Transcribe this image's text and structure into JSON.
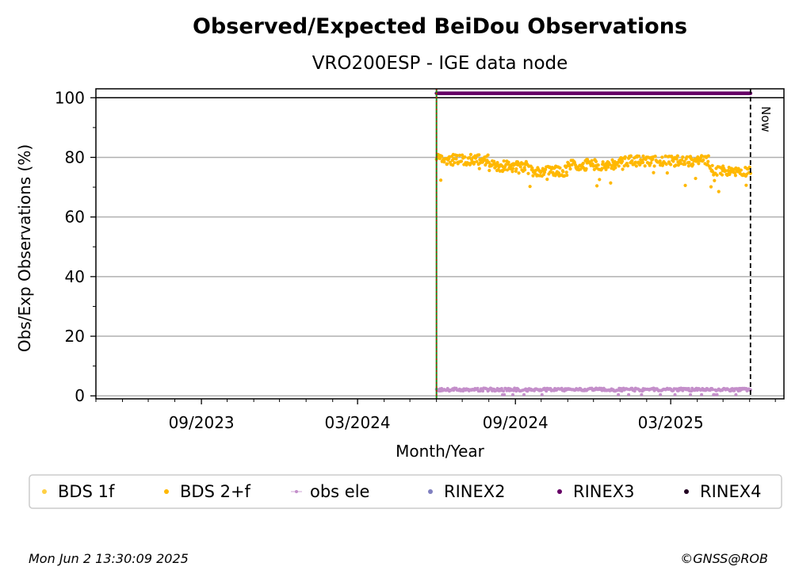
{
  "chart_data": {
    "type": "scatter",
    "title": "Observed/Expected BeiDou Observations",
    "subtitle": "VRO200ESP - IGE data node",
    "xlabel": "Month/Year",
    "ylabel": "Obs/Exp Observations (%)",
    "xlim": [
      "2023-05-01",
      "2025-07-11"
    ],
    "ylim": [
      -1,
      103
    ],
    "yticks": [
      0,
      20,
      40,
      60,
      80,
      100
    ],
    "xticks": [
      {
        "date": "2023-09-01",
        "label": "09/2023"
      },
      {
        "date": "2024-03-01",
        "label": "03/2024"
      },
      {
        "date": "2024-09-01",
        "label": "09/2024"
      },
      {
        "date": "2025-03-01",
        "label": "03/2025"
      }
    ],
    "grid": "horizontal",
    "reference_line": {
      "y": 100
    },
    "start_marker": {
      "date": "2024-06-01"
    },
    "now_marker": {
      "date": "2025-06-02",
      "label": "Now"
    },
    "date_range": [
      "2024-06-01",
      "2025-06-02"
    ],
    "series": [
      {
        "name": "BDS 1f",
        "color": "#ffd044",
        "values": []
      },
      {
        "name": "BDS 2+f",
        "color": "#ffb800",
        "segments": [
          {
            "from": "2024-06-01",
            "to": "2024-07-31",
            "mean": 79.2
          },
          {
            "from": "2024-08-01",
            "to": "2024-09-15",
            "mean": 77.0
          },
          {
            "from": "2024-09-16",
            "to": "2024-10-31",
            "mean": 75.5
          },
          {
            "from": "2024-11-01",
            "to": "2024-12-31",
            "mean": 77.5
          },
          {
            "from": "2025-01-01",
            "to": "2025-04-15",
            "mean": 78.8
          },
          {
            "from": "2025-04-16",
            "to": "2025-06-02",
            "mean": 75.5
          }
        ]
      },
      {
        "name": "obs ele",
        "color": "#c48fca",
        "mean": 2.1
      },
      {
        "name": "RINEX2",
        "color": "#8080c0",
        "values": []
      },
      {
        "name": "RINEX3",
        "color": "#660066",
        "value": 101.5
      },
      {
        "name": "RINEX4",
        "color": "#220022",
        "values": []
      }
    ]
  },
  "footer": {
    "timestamp": "Mon Jun  2 13:30:09 2025",
    "credit": "©GNSS@ROB"
  }
}
